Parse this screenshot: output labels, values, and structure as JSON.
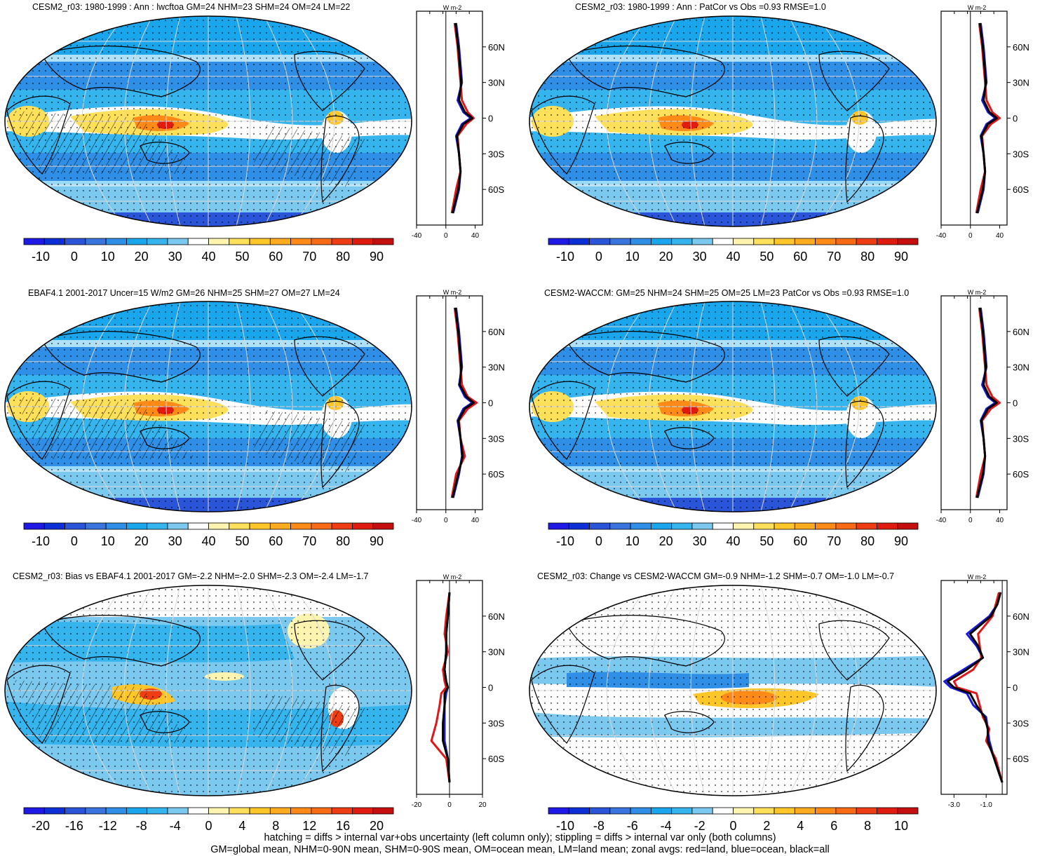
{
  "panels": [
    {
      "id": "p1",
      "title": "CESM2_r03: 1980-1999 : Ann : lwcftoa GM=24 NHM=23 SHM=24 OM=24 LM=22",
      "cbar": [
        "-10",
        "0",
        "10",
        "20",
        "30",
        "40",
        "50",
        "60",
        "70",
        "80",
        "90"
      ],
      "zonal_xticks": [
        "-40",
        "0",
        "40"
      ],
      "zonal_xlim": [
        -40,
        50
      ],
      "zonal_unit": "W m-2",
      "zonal_yticks": [
        "60N",
        "30N",
        "0",
        "30S",
        "60S"
      ],
      "hatch": true
    },
    {
      "id": "p2",
      "title": "CESM2_r03: 1980-1999 : Ann : PatCor vs Obs =0.93 RMSE=1.0",
      "cbar": [
        "-10",
        "0",
        "10",
        "20",
        "30",
        "40",
        "50",
        "60",
        "70",
        "80",
        "90"
      ],
      "zonal_xticks": [
        "-40",
        "0",
        "40"
      ],
      "zonal_xlim": [
        -40,
        50
      ],
      "zonal_unit": "W m-2",
      "zonal_yticks": [
        "60N",
        "30N",
        "0",
        "30S",
        "60S"
      ],
      "hatch": false
    },
    {
      "id": "p3",
      "title": "EBAF4.1 2001-2017 Uncer=15 W/m2 GM=26 NHM=25 SHM=27 OM=27 LM=24",
      "cbar": [
        "-10",
        "0",
        "10",
        "20",
        "30",
        "40",
        "50",
        "60",
        "70",
        "80",
        "90"
      ],
      "zonal_xticks": [
        "-40",
        "0",
        "40"
      ],
      "zonal_xlim": [
        -40,
        50
      ],
      "zonal_unit": "W m-2",
      "zonal_yticks": [
        "60N",
        "30N",
        "0",
        "30S",
        "60S"
      ],
      "hatch": true
    },
    {
      "id": "p4",
      "title": "CESM2-WACCM: GM=25 NHM=24 SHM=25 OM=25 LM=23 PatCor vs Obs =0.93 RMSE=1.0",
      "cbar": [
        "-10",
        "0",
        "10",
        "20",
        "30",
        "40",
        "50",
        "60",
        "70",
        "80",
        "90"
      ],
      "zonal_xticks": [
        "-40",
        "0",
        "40"
      ],
      "zonal_xlim": [
        -40,
        50
      ],
      "zonal_unit": "W m-2",
      "zonal_yticks": [
        "60N",
        "30N",
        "0",
        "30S",
        "60S"
      ],
      "hatch": false
    },
    {
      "id": "p5",
      "title": "CESM2_r03: Bias vs EBAF4.1 2001-2017 GM=-2.2 NHM=-2.0 SHM=-2.3 OM=-2.4 LM=-1.7",
      "cbar": [
        "-20",
        "-16",
        "-12",
        "-8",
        "-4",
        "0",
        "4",
        "8",
        "12",
        "16",
        "20"
      ],
      "zonal_xticks": [
        "-20",
        "0",
        "20"
      ],
      "zonal_xlim": [
        -20,
        20
      ],
      "zonal_unit": "W m-2",
      "zonal_yticks": [
        "60N",
        "30N",
        "0",
        "30S",
        "60S"
      ],
      "hatch": true
    },
    {
      "id": "p6",
      "title": "CESM2_r03: Change vs CESM2-WACCM GM=-0.9 NHM=-1.2 SHM=-0.7 OM=-1.0 LM=-0.7",
      "cbar": [
        "-10",
        "-8",
        "-6",
        "-4",
        "-2",
        "0",
        "2",
        "4",
        "6",
        "8",
        "10"
      ],
      "zonal_xticks": [
        "-3.0",
        "-1.0"
      ],
      "zonal_xlim": [
        -3.8,
        0.3
      ],
      "zonal_unit": "W m-2",
      "zonal_yticks": [
        "60N",
        "30N",
        "0",
        "30S",
        "60S"
      ],
      "hatch": false
    }
  ],
  "colors": {
    "scale": [
      "#1f19e6",
      "#0d2fd6",
      "#2a55d9",
      "#3a74df",
      "#2f8fe6",
      "#1aa6ec",
      "#35b4ee",
      "#7cc9f0",
      "#ffffff",
      "#fff5b0",
      "#ffe05a",
      "#ffc629",
      "#ffab1f",
      "#ff8a17",
      "#f86b14",
      "#ee3d12",
      "#e01b10",
      "#c50f0e"
    ],
    "land": "#e0161b",
    "ocean": "#1a1ad9",
    "all": "#000000"
  },
  "chart_data": [
    {
      "type": "map",
      "panel": "p1",
      "zonal": {
        "lat": [
          80,
          60,
          45,
          30,
          15,
          5,
          0,
          -5,
          -15,
          -30,
          -45,
          -60,
          -80
        ],
        "land": [
          12,
          16,
          18,
          20,
          22,
          30,
          38,
          28,
          16,
          18,
          20,
          14,
          8
        ],
        "ocean": [
          14,
          18,
          20,
          22,
          16,
          24,
          34,
          22,
          14,
          18,
          20,
          18,
          10
        ],
        "all": [
          13,
          17,
          19,
          21,
          18,
          26,
          36,
          24,
          15,
          18,
          20,
          17,
          9
        ]
      }
    },
    {
      "type": "map",
      "panel": "p2",
      "zonal": {
        "lat": [
          80,
          60,
          45,
          30,
          15,
          5,
          0,
          -5,
          -15,
          -30,
          -45,
          -60,
          -80
        ],
        "land": [
          12,
          16,
          18,
          20,
          22,
          30,
          40,
          28,
          16,
          18,
          20,
          14,
          8
        ],
        "ocean": [
          14,
          18,
          20,
          22,
          16,
          24,
          34,
          22,
          14,
          18,
          20,
          18,
          10
        ],
        "all": [
          13,
          17,
          19,
          21,
          18,
          26,
          36,
          24,
          15,
          18,
          20,
          17,
          9
        ]
      }
    },
    {
      "type": "map",
      "panel": "p3",
      "zonal": {
        "lat": [
          80,
          60,
          45,
          30,
          15,
          5,
          0,
          -5,
          -15,
          -30,
          -45,
          -60,
          -80
        ],
        "land": [
          12,
          16,
          18,
          20,
          22,
          30,
          42,
          30,
          18,
          20,
          26,
          14,
          8
        ],
        "ocean": [
          14,
          18,
          20,
          22,
          18,
          26,
          36,
          24,
          16,
          20,
          22,
          18,
          10
        ],
        "all": [
          13,
          17,
          19,
          21,
          19,
          28,
          38,
          26,
          17,
          20,
          23,
          17,
          9
        ]
      }
    },
    {
      "type": "map",
      "panel": "p4",
      "zonal": {
        "lat": [
          80,
          60,
          45,
          30,
          15,
          5,
          0,
          -5,
          -15,
          -30,
          -45,
          -60,
          -80
        ],
        "land": [
          12,
          16,
          18,
          20,
          22,
          30,
          40,
          28,
          16,
          18,
          20,
          14,
          8
        ],
        "ocean": [
          14,
          18,
          20,
          22,
          16,
          24,
          34,
          22,
          14,
          18,
          20,
          18,
          10
        ],
        "all": [
          13,
          17,
          19,
          21,
          18,
          26,
          36,
          24,
          15,
          18,
          20,
          17,
          9
        ]
      }
    },
    {
      "type": "map",
      "panel": "p5",
      "zonal": {
        "lat": [
          80,
          60,
          45,
          30,
          15,
          5,
          0,
          -5,
          -15,
          -30,
          -45,
          -60,
          -80
        ],
        "land": [
          0,
          -2,
          -3,
          -1,
          -4,
          -3,
          -2,
          -5,
          -6,
          -8,
          -11,
          -2,
          0
        ],
        "ocean": [
          0,
          -1,
          -2,
          -2,
          -3,
          -2,
          -1,
          -2,
          -3,
          -3,
          -3,
          -1,
          0
        ],
        "all": [
          0,
          -1,
          -2,
          -2,
          -3,
          -2,
          -1,
          -3,
          -3,
          -4,
          -4,
          -1,
          0
        ]
      }
    },
    {
      "type": "map",
      "panel": "p6",
      "zonal": {
        "lat": [
          80,
          70,
          60,
          45,
          35,
          25,
          15,
          5,
          0,
          -5,
          -15,
          -25,
          -35,
          -45,
          -60,
          -80
        ],
        "land": [
          -0.2,
          -0.4,
          -0.6,
          -1.5,
          -1.4,
          -1.3,
          -1.8,
          -3.0,
          -2.8,
          -1.6,
          -1.4,
          -1.2,
          -0.8,
          -1.0,
          -0.4,
          0.0
        ],
        "ocean": [
          -0.1,
          -0.3,
          -0.8,
          -2.2,
          -1.6,
          -1.2,
          -2.4,
          -3.6,
          -3.2,
          -2.2,
          -1.8,
          -1.0,
          -0.9,
          -0.8,
          -0.5,
          0.0
        ],
        "all": [
          -0.1,
          -0.3,
          -0.7,
          -2.0,
          -1.5,
          -1.2,
          -2.2,
          -3.4,
          -3.0,
          -2.0,
          -1.6,
          -1.1,
          -0.9,
          -0.9,
          -0.5,
          0.0
        ]
      }
    }
  ],
  "footer": {
    "line1": "hatching = diffs > internal var+obs uncertainty (left column only); stippling = diffs > internal var only (both columns)",
    "line2": "GM=global mean, NHM=0-90N mean, SHM=0-90S mean, OM=ocean mean, LM=land mean; zonal avgs: red=land, blue=ocean, black=all"
  }
}
